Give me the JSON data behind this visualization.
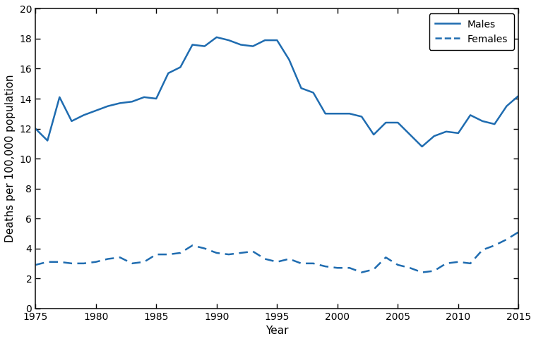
{
  "years": [
    1975,
    1976,
    1977,
    1978,
    1979,
    1980,
    1981,
    1982,
    1983,
    1984,
    1985,
    1986,
    1987,
    1988,
    1989,
    1990,
    1991,
    1992,
    1993,
    1994,
    1995,
    1996,
    1997,
    1998,
    1999,
    2000,
    2001,
    2002,
    2003,
    2004,
    2005,
    2006,
    2007,
    2008,
    2009,
    2010,
    2011,
    2012,
    2013,
    2014,
    2015
  ],
  "males": [
    12.0,
    11.2,
    14.1,
    12.5,
    12.9,
    13.2,
    13.5,
    13.7,
    13.8,
    14.1,
    14.0,
    15.7,
    16.1,
    17.6,
    17.5,
    18.1,
    17.9,
    17.6,
    17.5,
    17.9,
    17.9,
    16.6,
    14.7,
    14.4,
    13.0,
    13.0,
    13.0,
    12.8,
    11.6,
    12.4,
    12.4,
    11.6,
    10.8,
    11.5,
    11.8,
    11.7,
    12.9,
    12.5,
    12.3,
    13.5,
    14.2
  ],
  "females": [
    2.9,
    3.1,
    3.1,
    3.0,
    3.0,
    3.1,
    3.3,
    3.4,
    3.0,
    3.1,
    3.6,
    3.6,
    3.7,
    4.2,
    4.0,
    3.7,
    3.6,
    3.7,
    3.8,
    3.3,
    3.1,
    3.3,
    3.0,
    3.0,
    2.8,
    2.7,
    2.7,
    2.4,
    2.6,
    3.4,
    2.9,
    2.7,
    2.4,
    2.5,
    3.0,
    3.1,
    3.0,
    3.9,
    4.2,
    4.6,
    5.1
  ],
  "line_color": "#1F6CB0",
  "ylabel": "Deaths per 100,000 population",
  "xlabel": "Year",
  "ylim": [
    0,
    20
  ],
  "yticks": [
    0,
    2,
    4,
    6,
    8,
    10,
    12,
    14,
    16,
    18,
    20
  ],
  "xlim": [
    1975,
    2015
  ],
  "xticks": [
    1975,
    1980,
    1985,
    1990,
    1995,
    2000,
    2005,
    2010,
    2015
  ],
  "legend_labels": [
    "Males",
    "Females"
  ],
  "legend_loc": "upper right",
  "spine_color": "#1a1a1a",
  "tick_label_fontsize": 10,
  "axis_label_fontsize": 11
}
